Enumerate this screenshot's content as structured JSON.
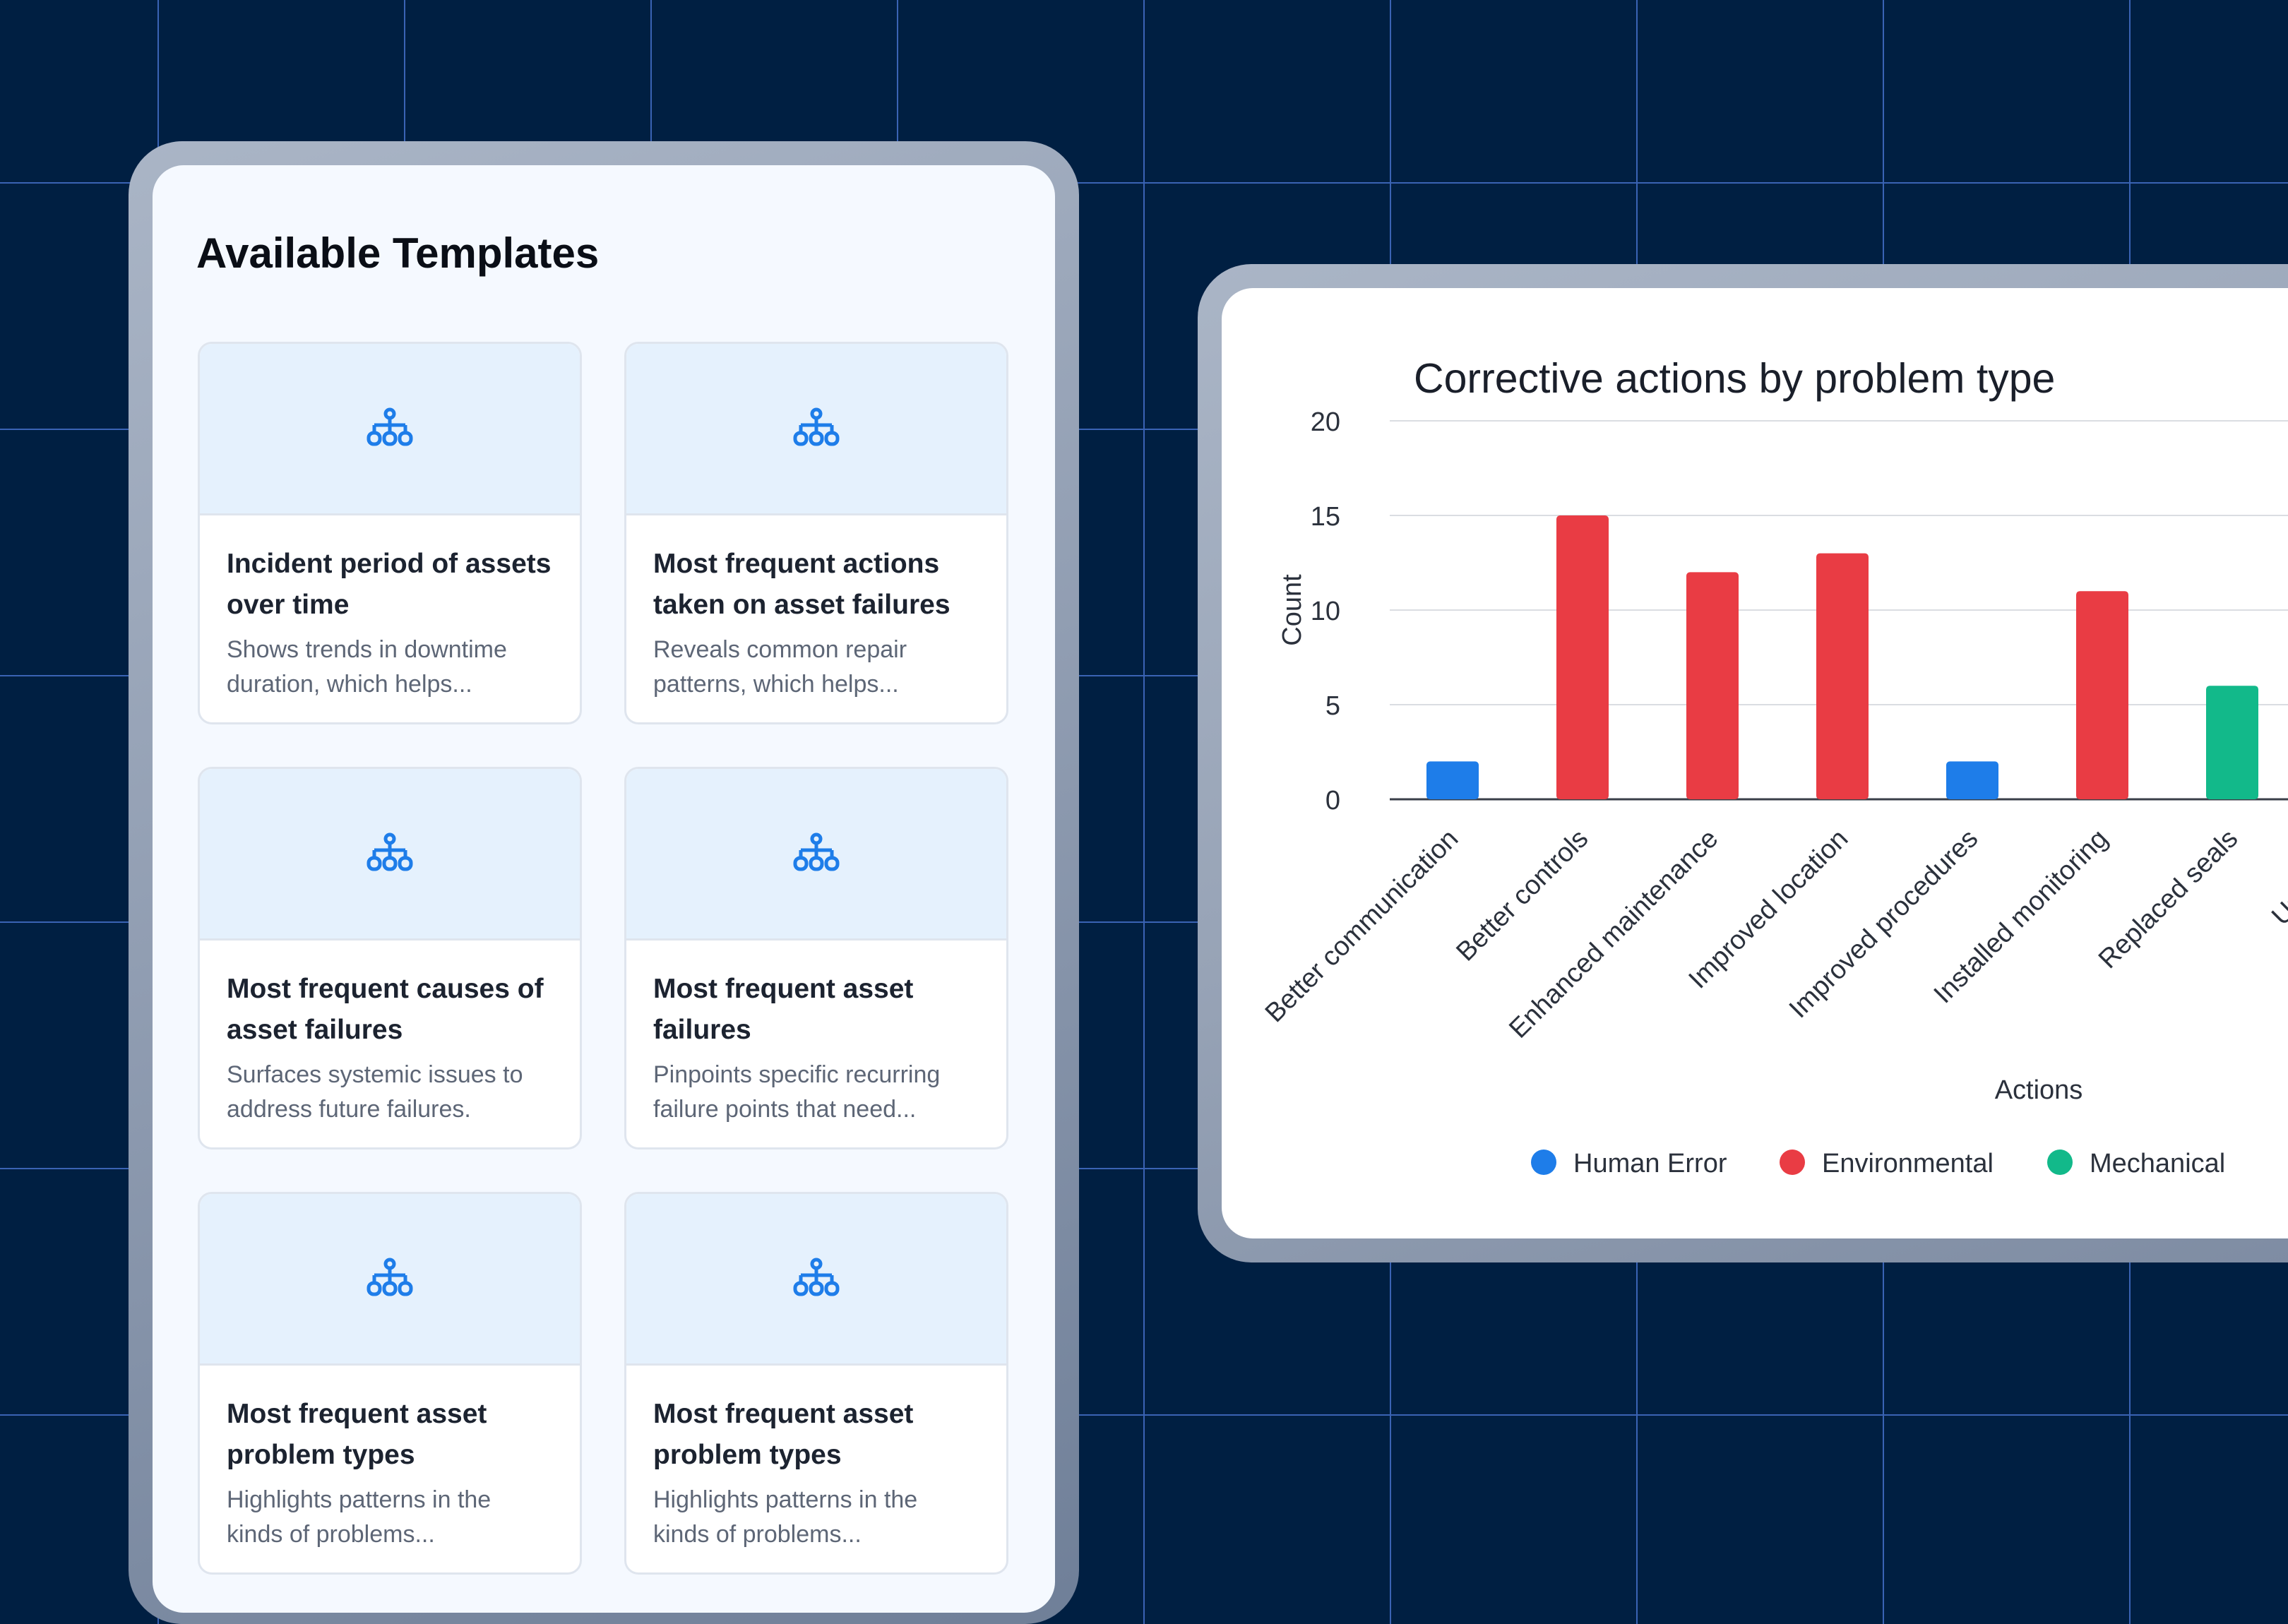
{
  "templates": {
    "title": "Available Templates",
    "icon": "hierarchy-icon",
    "accent_color": "#1e7de9",
    "cards": [
      {
        "title_lines": [
          "Incident period of assets",
          "over time"
        ],
        "desc_lines": [
          "Shows trends in downtime",
          "duration, which helps..."
        ]
      },
      {
        "title_lines": [
          "Most frequent actions",
          "taken on asset failures"
        ],
        "desc_lines": [
          "Reveals common repair",
          "patterns, which helps..."
        ]
      },
      {
        "title_lines": [
          "Most frequent causes of",
          "asset failures"
        ],
        "desc_lines": [
          "Surfaces systemic issues to",
          "address future failures."
        ]
      },
      {
        "title_lines": [
          "Most frequent asset",
          "failures"
        ],
        "desc_lines": [
          "Pinpoints specific recurring",
          "failure points that need..."
        ]
      },
      {
        "title_lines": [
          "Most frequent asset",
          "problem types"
        ],
        "desc_lines": [
          "Highlights patterns in the",
          "kinds of problems..."
        ]
      },
      {
        "title_lines": [
          "Most frequent asset",
          "problem types"
        ],
        "desc_lines": [
          "Highlights patterns in the",
          "kinds of problems..."
        ]
      }
    ]
  },
  "chart_data": {
    "type": "bar",
    "title": "Corrective actions by problem type",
    "xlabel": "Actions",
    "ylabel": "Count",
    "ylim": [
      0,
      20
    ],
    "yticks": [
      0,
      5,
      10,
      15,
      20
    ],
    "grid": true,
    "legend_position": "bottom",
    "categories": [
      "Better communication",
      "Better controls",
      "Enhanced maintenance",
      "Improved location",
      "Improved procedures",
      "Installed monitoring",
      "Replaced seals",
      "Updated s"
    ],
    "values": [
      2,
      15,
      12,
      13,
      2,
      11,
      6,
      null
    ],
    "bar_series": [
      "Human Error",
      "Environmental",
      "Environmental",
      "Environmental",
      "Human Error",
      "Environmental",
      "Mechanical",
      null
    ],
    "series": [
      {
        "name": "Human Error",
        "color": "#1e7de9"
      },
      {
        "name": "Environmental",
        "color": "#e93c44"
      },
      {
        "name": "Mechanical",
        "color": "#12b98a"
      },
      {
        "name": "",
        "color": "#f28c1c"
      }
    ]
  }
}
